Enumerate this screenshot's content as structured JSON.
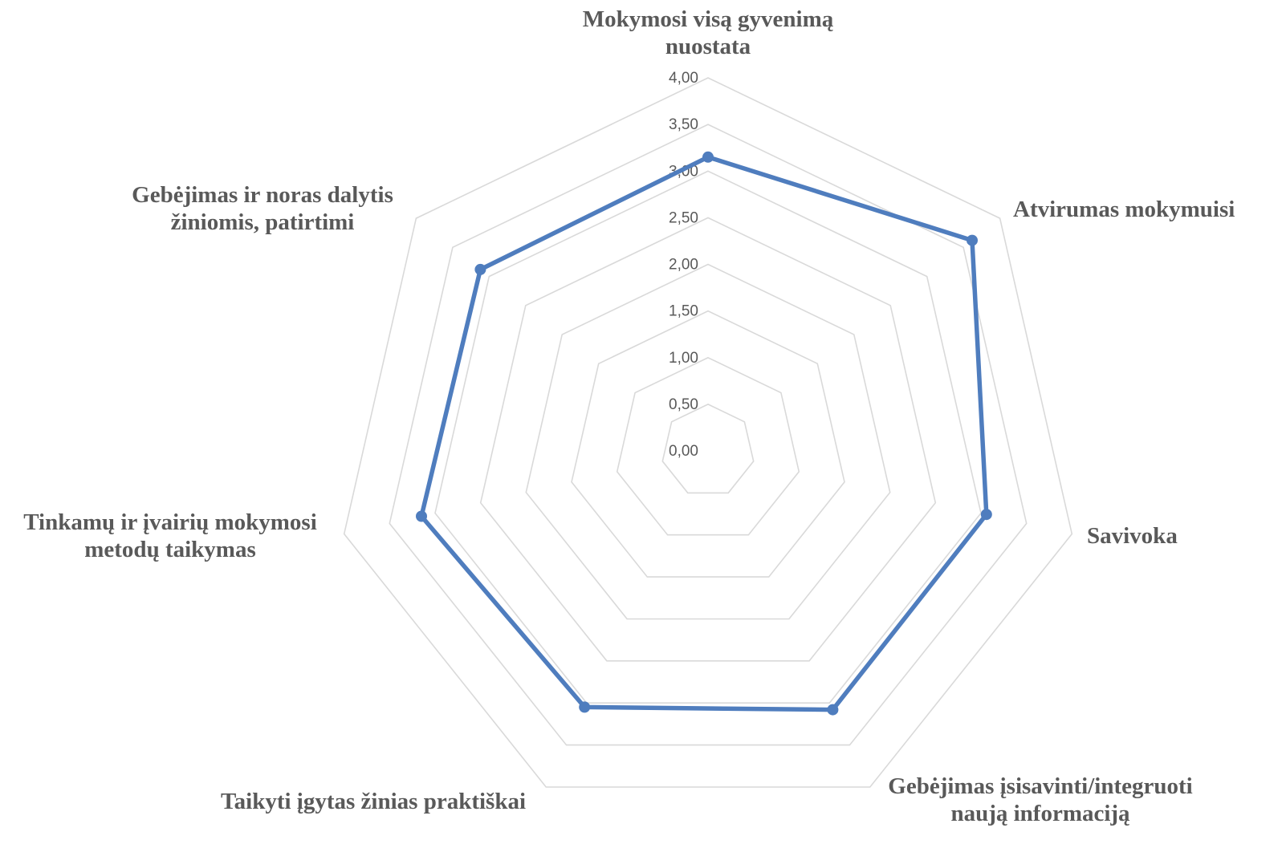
{
  "chart_data": {
    "type": "radar",
    "categories": [
      [
        "Mokymosi visą gyvenimą",
        "nuostata"
      ],
      [
        "Atvirumas mokymuisi"
      ],
      [
        "Savivoka"
      ],
      [
        "Gebėjimas įsisavinti/integruoti",
        "naują informaciją"
      ],
      [
        "Taikyti įgytas žinias praktiškai"
      ],
      [
        "Tinkamų ir įvairių mokymosi",
        "metodų taikymas"
      ],
      [
        "Gebėjimas ir noras dalytis",
        "žiniomis, patirtimi"
      ]
    ],
    "values": [
      3.15,
      3.62,
      3.06,
      3.08,
      3.05,
      3.15,
      3.12
    ],
    "rmin": 0,
    "rmax": 4,
    "ticks": [
      "0,00",
      "0,50",
      "1,00",
      "1,50",
      "2,00",
      "2,50",
      "3,00",
      "3,50",
      "4,00"
    ],
    "grid": true,
    "colors": {
      "series": "#4f7dbe",
      "grid": "#d9d9d9",
      "text": "#595959"
    }
  }
}
